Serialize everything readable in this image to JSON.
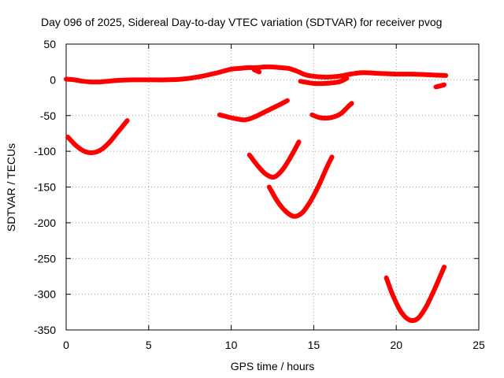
{
  "chart_data": {
    "type": "line",
    "title": "Day 096 of 2025, Sidereal Day-to-day VTEC variation (SDTVAR) for receiver pvog",
    "xlabel": "GPS time / hours",
    "ylabel": "SDTVAR / TECUs",
    "xlim": [
      0,
      25
    ],
    "ylim": [
      -350,
      50
    ],
    "xticks": [
      0,
      5,
      10,
      15,
      20,
      25
    ],
    "yticks": [
      50,
      0,
      -50,
      -100,
      -150,
      -200,
      -250,
      -300,
      -350
    ],
    "grid": true,
    "color": "#ff0000",
    "series": [
      {
        "name": "arc-1",
        "x": [
          0,
          0.5,
          1,
          1.5,
          2,
          2.5,
          3
        ],
        "y": [
          1,
          0,
          -2,
          -3,
          -3,
          -2,
          -1
        ]
      },
      {
        "name": "arc-2",
        "x": [
          3,
          4,
          5,
          6,
          7,
          8,
          9,
          9.5,
          10,
          10.5,
          11,
          11.5,
          12,
          12.5,
          13,
          13.5
        ],
        "y": [
          -1,
          0,
          0,
          0,
          1,
          4,
          9,
          12,
          15,
          16,
          17,
          17,
          18,
          18,
          17,
          16
        ]
      },
      {
        "name": "arc-3",
        "x": [
          11.4,
          11.7
        ],
        "y": [
          14,
          11
        ]
      },
      {
        "name": "arc-4",
        "x": [
          13.5,
          14,
          14.5,
          15,
          15.5,
          16,
          16.5,
          17,
          17.5,
          18,
          19,
          20,
          21,
          22,
          23
        ],
        "y": [
          16,
          12,
          7,
          5,
          4,
          4,
          5,
          7,
          9,
          10,
          9,
          8,
          8,
          7,
          6
        ]
      },
      {
        "name": "arc-5",
        "x": [
          14.2,
          15,
          15.7,
          16.5,
          17
        ],
        "y": [
          -2,
          -5,
          -5,
          -3,
          2
        ]
      },
      {
        "name": "arc-6",
        "x": [
          22.4,
          22.9
        ],
        "y": [
          -10,
          -7
        ]
      },
      {
        "name": "arc-7",
        "x": [
          0.1,
          0.6,
          1.1,
          1.6,
          2.1,
          2.6,
          3.1,
          3.7
        ],
        "y": [
          -80,
          -92,
          -100,
          -102,
          -98,
          -88,
          -74,
          -57
        ]
      },
      {
        "name": "arc-8",
        "x": [
          9.3,
          10,
          10.8,
          11.4,
          12.2,
          13,
          13.4
        ],
        "y": [
          -49,
          -53,
          -56,
          -52,
          -43,
          -34,
          -29
        ]
      },
      {
        "name": "arc-9",
        "x": [
          14.9,
          15.4,
          16,
          16.6,
          17.1,
          17.3
        ],
        "y": [
          -49,
          -53,
          -53,
          -48,
          -37,
          -33
        ]
      },
      {
        "name": "arc-10",
        "x": [
          11.1,
          11.6,
          12.1,
          12.6,
          13.1,
          13.6,
          14.1
        ],
        "y": [
          -105,
          -120,
          -132,
          -136,
          -126,
          -108,
          -87
        ]
      },
      {
        "name": "arc-11",
        "x": [
          12.3,
          12.8,
          13.3,
          13.8,
          14.3,
          14.8,
          15.3,
          15.8,
          16.1
        ],
        "y": [
          -150,
          -170,
          -184,
          -191,
          -186,
          -170,
          -148,
          -122,
          -108
        ]
      },
      {
        "name": "arc-12",
        "x": [
          19.4,
          19.8,
          20.3,
          20.8,
          21.3,
          21.8,
          22.3,
          22.9
        ],
        "y": [
          -277,
          -302,
          -325,
          -336,
          -334,
          -318,
          -294,
          -262
        ]
      }
    ]
  }
}
